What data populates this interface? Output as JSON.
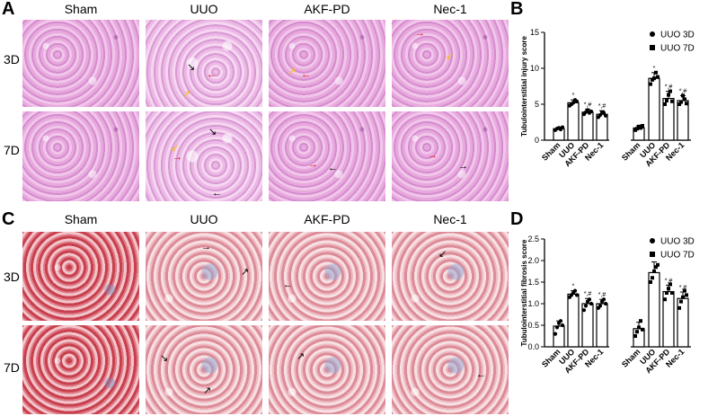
{
  "panels": {
    "A": "A",
    "B": "B",
    "C": "C",
    "D": "D"
  },
  "histology_top": {
    "columns": [
      "Sham",
      "UUO",
      "AKF-PD",
      "Nec-1"
    ],
    "rows": [
      "3D",
      "7D"
    ]
  },
  "histology_bottom": {
    "columns": [
      "Sham",
      "UUO",
      "AKF-PD",
      "Nec-1"
    ],
    "rows": [
      "3D",
      "7D"
    ]
  },
  "colors": {
    "he_stain": "#e1a2d8",
    "masson_stain": "#c9505c",
    "arrow_black": "#000000",
    "arrow_red": "#e0151b",
    "arrow_yellow": "#f2c200"
  },
  "chart_data": [
    {
      "type": "bar",
      "ylabel": "Tubulointerstitial injury score",
      "ylim": [
        0,
        15
      ],
      "yticks": [
        "0",
        "5",
        "10",
        "15"
      ],
      "categories": [
        "Sham",
        "UUO",
        "AKF-PD",
        "Nec-1",
        "Sham",
        "UUO",
        "AKF-PD",
        "Nec-1"
      ],
      "groups": [
        "UUO 3D",
        "UUO 3D",
        "UUO 3D",
        "UUO 3D",
        "UUO 7D",
        "UUO 7D",
        "UUO 7D",
        "UUO 7D"
      ],
      "legend": [
        {
          "name": "UUO 3D",
          "marker": "circle"
        },
        {
          "name": "UUO 7D",
          "marker": "square"
        }
      ],
      "legend_position": "top-right",
      "values": [
        1.6,
        5.2,
        3.9,
        3.6,
        1.7,
        8.6,
        5.8,
        5.5
      ],
      "errors": [
        0.2,
        0.4,
        0.4,
        0.5,
        0.3,
        0.8,
        1.0,
        0.7
      ],
      "significance": [
        "",
        "*",
        "*,#",
        "*,#",
        "",
        "*",
        "*,#",
        "*,#"
      ],
      "points": [
        [
          1.4,
          1.6,
          1.7,
          1.5,
          1.8
        ],
        [
          4.8,
          5.0,
          5.2,
          5.6,
          5.4
        ],
        [
          3.6,
          3.9,
          4.2,
          3.8,
          4.0
        ],
        [
          3.2,
          3.5,
          3.9,
          3.8,
          3.4
        ],
        [
          1.4,
          1.6,
          1.9,
          1.7,
          2.0
        ],
        [
          7.8,
          8.4,
          8.6,
          9.4,
          8.8
        ],
        [
          5.0,
          5.5,
          6.3,
          6.8,
          5.4
        ],
        [
          5.0,
          5.3,
          6.2,
          5.7,
          5.1
        ]
      ]
    },
    {
      "type": "bar",
      "ylabel": "Tubulointerstitial fibrosis score",
      "ylim": [
        0,
        2.5
      ],
      "yticks": [
        "0.0",
        "0.5",
        "1.0",
        "1.5",
        "2.0",
        "2.5"
      ],
      "categories": [
        "Sham",
        "UUO",
        "AKF-PD",
        "Nec-1",
        "Sham",
        "UUO",
        "AKF-PD",
        "Nec-1"
      ],
      "groups": [
        "UUO 3D",
        "UUO 3D",
        "UUO 3D",
        "UUO 3D",
        "UUO 7D",
        "UUO 7D",
        "UUO 7D",
        "UUO 7D"
      ],
      "legend": [
        {
          "name": "UUO 3D",
          "marker": "circle"
        },
        {
          "name": "UUO 7D",
          "marker": "square"
        }
      ],
      "legend_position": "top-right",
      "values": [
        0.48,
        1.22,
        1.0,
        1.0,
        0.42,
        1.72,
        1.28,
        1.12
      ],
      "errors": [
        0.12,
        0.08,
        0.12,
        0.1,
        0.15,
        0.25,
        0.15,
        0.15
      ],
      "significance": [
        "",
        "*",
        "*,#",
        "*,#",
        "",
        "*",
        "*,#",
        "*,#"
      ],
      "points": [
        [
          0.3,
          0.45,
          0.55,
          0.6,
          0.5
        ],
        [
          1.15,
          1.2,
          1.25,
          1.3,
          1.2
        ],
        [
          0.85,
          0.95,
          1.05,
          1.1,
          1.0
        ],
        [
          0.9,
          0.95,
          1.05,
          1.1,
          1.0
        ],
        [
          0.25,
          0.35,
          0.45,
          0.6,
          0.4
        ],
        [
          1.5,
          1.6,
          1.75,
          1.85,
          1.9
        ],
        [
          1.1,
          1.25,
          1.35,
          1.45,
          1.25
        ],
        [
          0.9,
          1.05,
          1.15,
          1.3,
          1.2
        ]
      ]
    }
  ]
}
